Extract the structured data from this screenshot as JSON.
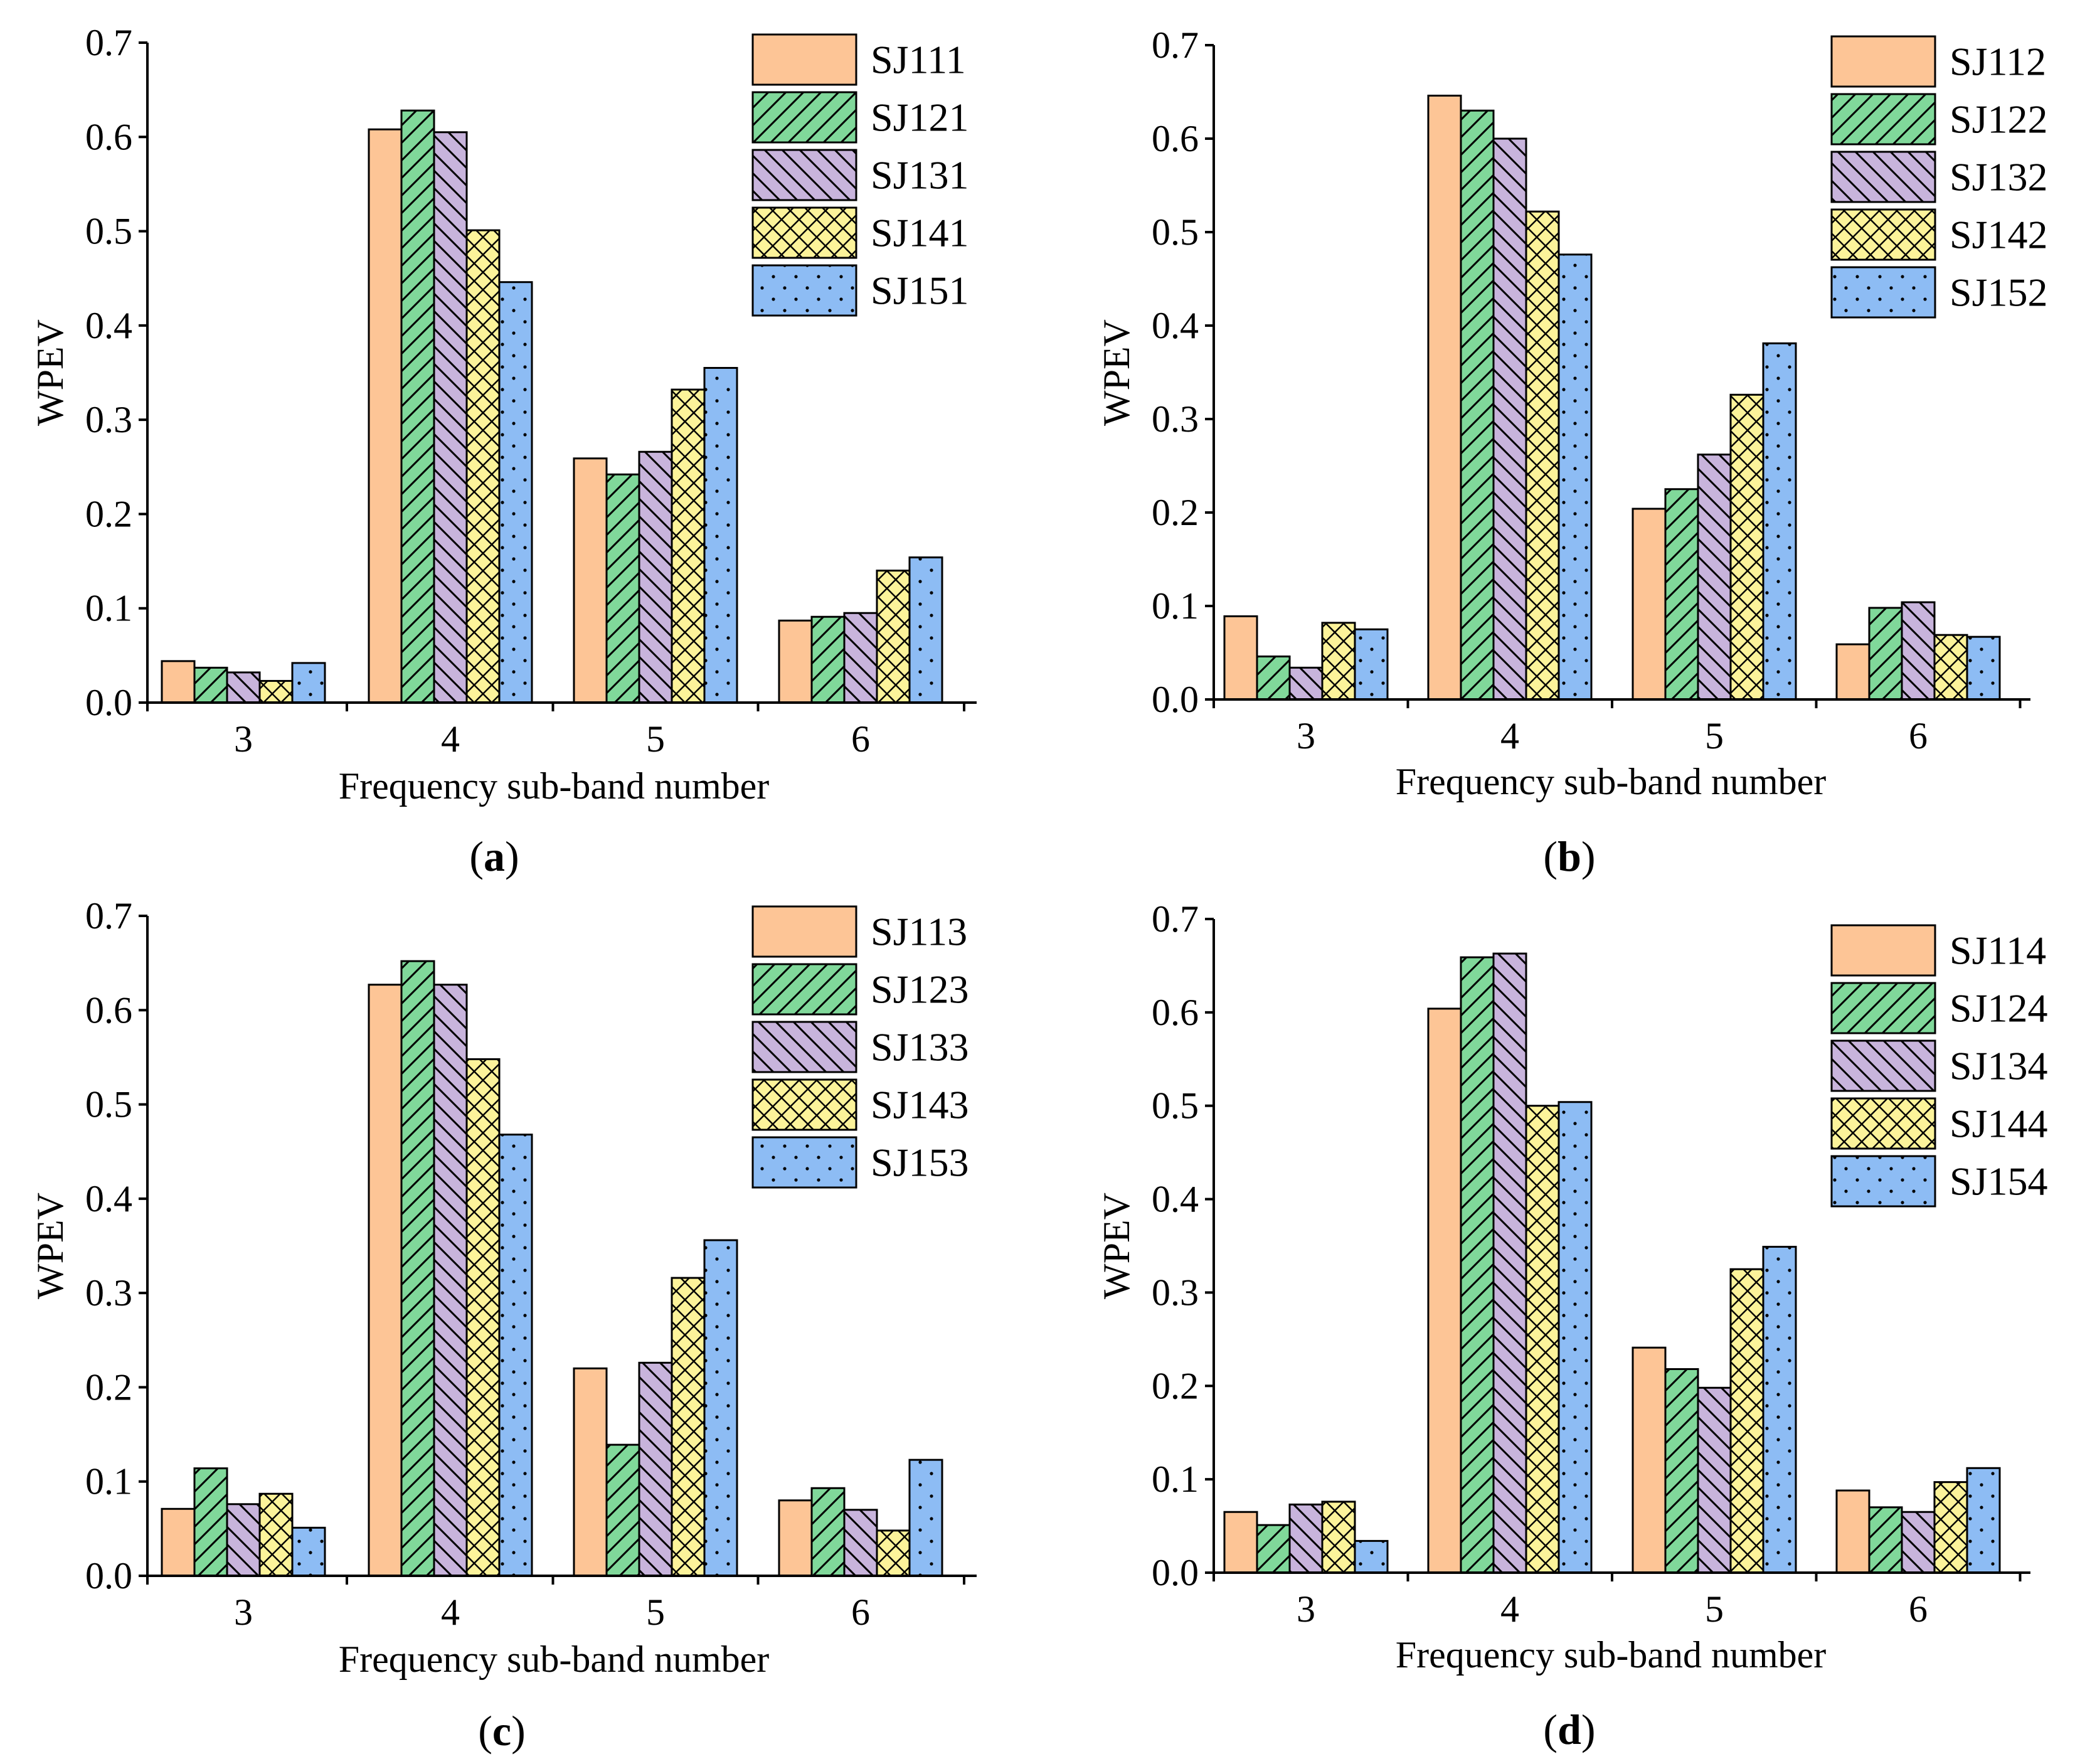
{
  "colors": {
    "s1": "#fdc596",
    "s2": "#80d89a",
    "s3": "#c8b4dc",
    "s4": "#fcf39a",
    "s5": "#8dbcf4"
  },
  "chart_data": [
    {
      "type": "bar",
      "panel_label": "a",
      "categories": [
        "3",
        "4",
        "5",
        "6"
      ],
      "series": [
        {
          "name": "SJ111",
          "values": [
            0.044,
            0.608,
            0.259,
            0.087
          ]
        },
        {
          "name": "SJ121",
          "values": [
            0.037,
            0.628,
            0.242,
            0.091
          ]
        },
        {
          "name": "SJ131",
          "values": [
            0.032,
            0.605,
            0.266,
            0.095
          ]
        },
        {
          "name": "SJ141",
          "values": [
            0.023,
            0.501,
            0.332,
            0.14
          ]
        },
        {
          "name": "SJ151",
          "values": [
            0.042,
            0.446,
            0.355,
            0.154
          ]
        }
      ],
      "xlabel": "Frequency sub-band number",
      "ylabel": "WPEV",
      "ylim": [
        0,
        0.7
      ],
      "yticks": [
        "0.0",
        "0.1",
        "0.2",
        "0.3",
        "0.4",
        "0.5",
        "0.6",
        "0.7"
      ],
      "legend": "top-right"
    },
    {
      "type": "bar",
      "panel_label": "b",
      "categories": [
        "3",
        "4",
        "5",
        "6"
      ],
      "series": [
        {
          "name": "SJ112",
          "values": [
            0.089,
            0.646,
            0.204,
            0.059
          ]
        },
        {
          "name": "SJ122",
          "values": [
            0.046,
            0.63,
            0.225,
            0.098
          ]
        },
        {
          "name": "SJ132",
          "values": [
            0.034,
            0.6,
            0.262,
            0.104
          ]
        },
        {
          "name": "SJ142",
          "values": [
            0.082,
            0.522,
            0.326,
            0.069
          ]
        },
        {
          "name": "SJ152",
          "values": [
            0.075,
            0.476,
            0.381,
            0.067
          ]
        }
      ],
      "xlabel": "Frequency sub-band number",
      "ylabel": "WPEV",
      "ylim": [
        0,
        0.7
      ],
      "yticks": [
        "0.0",
        "0.1",
        "0.2",
        "0.3",
        "0.4",
        "0.5",
        "0.6",
        "0.7"
      ],
      "legend": "top-right"
    },
    {
      "type": "bar",
      "panel_label": "c",
      "categories": [
        "3",
        "4",
        "5",
        "6"
      ],
      "series": [
        {
          "name": "SJ113",
          "values": [
            0.071,
            0.627,
            0.22,
            0.08
          ]
        },
        {
          "name": "SJ123",
          "values": [
            0.114,
            0.652,
            0.139,
            0.093
          ]
        },
        {
          "name": "SJ133",
          "values": [
            0.076,
            0.627,
            0.226,
            0.07
          ]
        },
        {
          "name": "SJ143",
          "values": [
            0.087,
            0.548,
            0.316,
            0.048
          ]
        },
        {
          "name": "SJ153",
          "values": [
            0.051,
            0.468,
            0.356,
            0.123
          ]
        }
      ],
      "xlabel": "Frequency sub-band number",
      "ylabel": "WPEV",
      "ylim": [
        0,
        0.7
      ],
      "yticks": [
        "0.0",
        "0.1",
        "0.2",
        "0.3",
        "0.4",
        "0.5",
        "0.6",
        "0.7"
      ],
      "legend": "top-right"
    },
    {
      "type": "bar",
      "panel_label": "d",
      "categories": [
        "3",
        "4",
        "5",
        "6"
      ],
      "series": [
        {
          "name": "SJ114",
          "values": [
            0.065,
            0.604,
            0.241,
            0.088
          ]
        },
        {
          "name": "SJ124",
          "values": [
            0.051,
            0.659,
            0.218,
            0.07
          ]
        },
        {
          "name": "SJ134",
          "values": [
            0.073,
            0.663,
            0.198,
            0.065
          ]
        },
        {
          "name": "SJ144",
          "values": [
            0.076,
            0.5,
            0.325,
            0.097
          ]
        },
        {
          "name": "SJ154",
          "values": [
            0.034,
            0.504,
            0.349,
            0.112
          ]
        }
      ],
      "xlabel": "Frequency sub-band number",
      "ylabel": "WPEV",
      "ylim": [
        0,
        0.7
      ],
      "yticks": [
        "0.0",
        "0.1",
        "0.2",
        "0.3",
        "0.4",
        "0.5",
        "0.6",
        "0.7"
      ],
      "legend": "top-right"
    }
  ]
}
